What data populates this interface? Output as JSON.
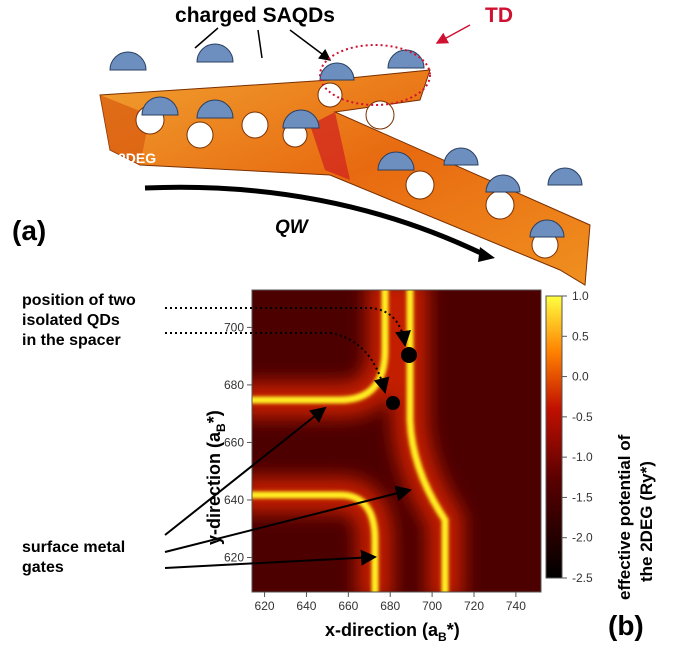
{
  "panel_a": {
    "label": "(a)",
    "saqd_label": "charged SAQDs",
    "td_label": "TD",
    "deg_label": "2DEG",
    "qw_label": "QW"
  },
  "chart_data": {
    "type": "heatmap",
    "panel_label": "(b)",
    "x_label": {
      "text": "x-direction (a",
      "sub": "B",
      "tail": "*)"
    },
    "y_label": {
      "text": "y-direction (a",
      "sub": "B",
      "tail": "*)"
    },
    "xlim": [
      614,
      752
    ],
    "xticks": [
      620,
      640,
      660,
      680,
      700,
      720,
      740
    ],
    "ylim": [
      608,
      713
    ],
    "yticks": [
      620,
      640,
      660,
      680,
      700
    ],
    "clim": [
      -2.5,
      1.0
    ],
    "cticks": [
      {
        "value": 1,
        "label": "1.0"
      },
      0.5,
      {
        "value": 0,
        "label": "0.0"
      },
      -0.5,
      {
        "value": -1,
        "label": "-1.0"
      },
      -1.5,
      {
        "value": -2,
        "label": "-2.0"
      },
      -2.5
    ],
    "colorbar_label": [
      "effective potential of",
      "the 2DEG (Ry*)"
    ],
    "annotations": {
      "qd_note": [
        "position of two",
        "isolated QDs",
        "in the spacer"
      ],
      "gates_note": [
        "surface metal",
        "gates"
      ]
    }
  }
}
